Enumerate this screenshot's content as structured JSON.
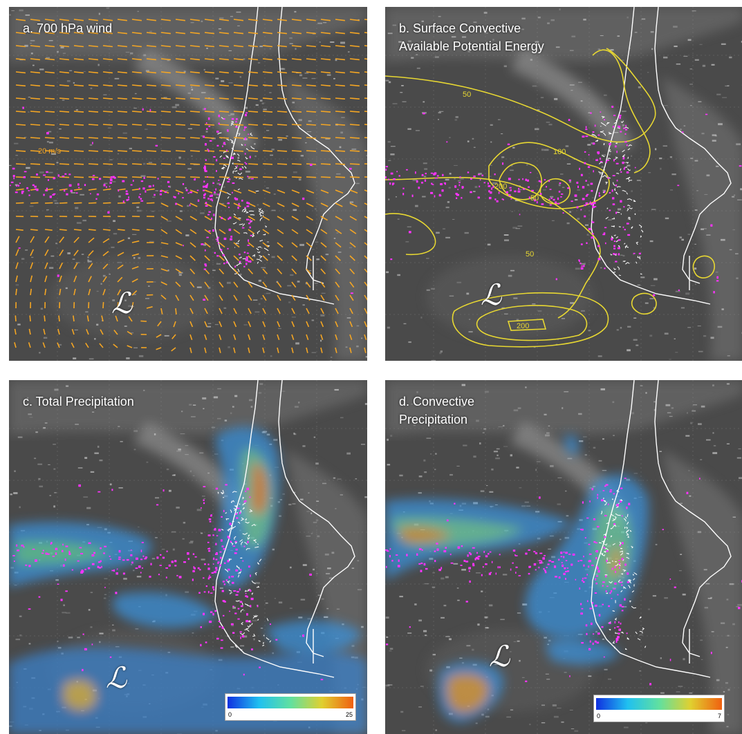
{
  "panels": {
    "a": {
      "title": "a. 700 hPa wind",
      "vector_label": "20 m/s"
    },
    "b": {
      "title": "b. Surface Convective\nAvailable Potential Energy",
      "contour_labels": [
        "50",
        "100",
        "200",
        "50",
        "50",
        "200"
      ]
    },
    "c": {
      "title": "c. Total Precipitation",
      "colorbar": {
        "min": "0",
        "max": "25"
      }
    },
    "d": {
      "title": "d. Convective\nPrecipitation",
      "colorbar": {
        "min": "0",
        "max": "7"
      }
    }
  },
  "low_symbol": "ℒ",
  "colors": {
    "wind_vectors": "#f5a623",
    "cape_contours": "#e8d832",
    "lightning": "#ff33ff",
    "coastline": "#ffffff"
  }
}
